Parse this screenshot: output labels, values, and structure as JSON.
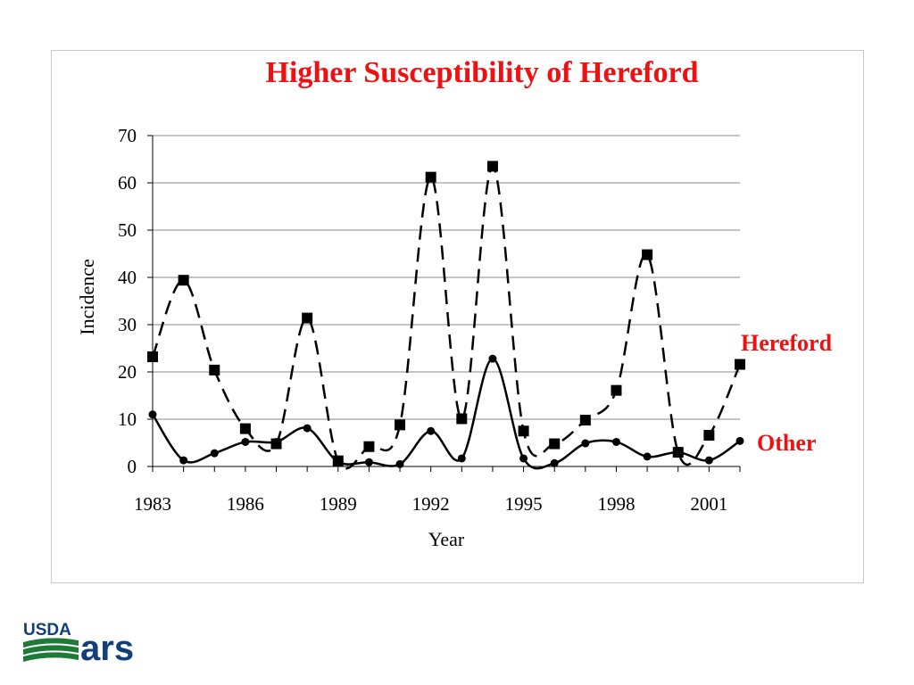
{
  "chart_data": {
    "type": "line",
    "title": "Higher Susceptibility of Hereford",
    "xlabel": "Year",
    "ylabel": "Incidence",
    "ylim": [
      0,
      70
    ],
    "xlim": [
      1983,
      2002
    ],
    "yticks": [
      "0",
      "10",
      "20",
      "30",
      "40",
      "50",
      "60",
      "70"
    ],
    "xticks": [
      "1983",
      "1986",
      "1989",
      "1992",
      "1995",
      "1998",
      "2001"
    ],
    "grid": true,
    "series": [
      {
        "name": "Hereford",
        "marker": "square",
        "line_style": "dashed",
        "x": [
          1983,
          1984,
          1985,
          1986,
          1987,
          1988,
          1989,
          1990,
          1991,
          1992,
          1993,
          1994,
          1995,
          1996,
          1997,
          1998,
          1999,
          2000,
          2001,
          2002
        ],
        "y": [
          23.2,
          39.4,
          20.4,
          8.0,
          4.8,
          31.4,
          1.2,
          4.2,
          8.8,
          61.2,
          10.1,
          63.5,
          7.5,
          4.8,
          9.8,
          16.1,
          44.8,
          3.0,
          6.6,
          21.6
        ]
      },
      {
        "name": "Other",
        "marker": "circle",
        "line_style": "solid",
        "x": [
          1983,
          1984,
          1985,
          1986,
          1987,
          1988,
          1989,
          1990,
          1991,
          1992,
          1993,
          1994,
          1995,
          1996,
          1997,
          1998,
          1999,
          2000,
          2001,
          2002
        ],
        "y": [
          11.0,
          1.3,
          2.8,
          5.2,
          5.2,
          8.1,
          1.0,
          0.9,
          0.5,
          7.5,
          1.7,
          22.8,
          1.7,
          0.7,
          4.9,
          5.2,
          2.1,
          3.0,
          1.3,
          5.4
        ]
      }
    ]
  },
  "logo": {
    "usda": "USDA",
    "ars": "ars"
  },
  "colors": {
    "title": "#ee1111",
    "series_label": "#ee1111",
    "logo": "#123f7a",
    "logo_green": "#1f7a3a"
  }
}
